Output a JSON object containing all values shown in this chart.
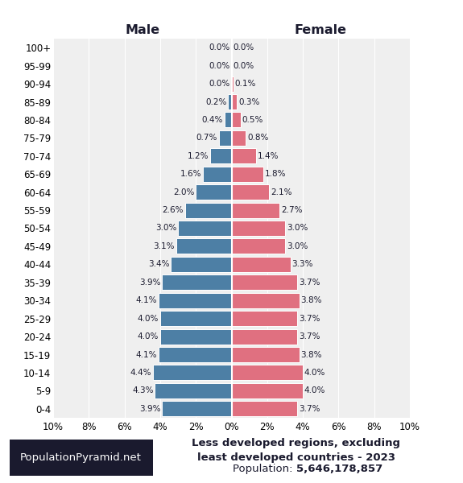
{
  "age_groups": [
    "0-4",
    "5-9",
    "10-14",
    "15-19",
    "20-24",
    "25-29",
    "30-34",
    "35-39",
    "40-44",
    "45-49",
    "50-54",
    "55-59",
    "60-64",
    "65-69",
    "70-74",
    "75-79",
    "80-84",
    "85-89",
    "90-94",
    "95-99",
    "100+"
  ],
  "male": [
    3.9,
    4.3,
    4.4,
    4.1,
    4.0,
    4.0,
    4.1,
    3.9,
    3.4,
    3.1,
    3.0,
    2.6,
    2.0,
    1.6,
    1.2,
    0.7,
    0.4,
    0.2,
    0.0,
    0.0,
    0.0
  ],
  "female": [
    3.7,
    4.0,
    4.0,
    3.8,
    3.7,
    3.7,
    3.8,
    3.7,
    3.3,
    3.0,
    3.0,
    2.7,
    2.1,
    1.8,
    1.4,
    0.8,
    0.5,
    0.3,
    0.1,
    0.0,
    0.0
  ],
  "male_color": "#4d7fa5",
  "female_color": "#e07080",
  "bar_edge_color": "#ffffff",
  "background_color": "#ffffff",
  "plot_background": "#efefef",
  "title_line1": "Less developed regions, excluding",
  "title_line2": "least developed countries - 2023",
  "title_line3": "Population: ",
  "population": "5,646,178,857",
  "header_left": "Male",
  "header_right": "Female",
  "watermark": "PopulationPyramid.net",
  "xlim": 10,
  "title_color": "#1a1a2e",
  "watermark_bg": "#1a1a2e",
  "watermark_text_color": "#ffffff",
  "bar_height": 0.85,
  "label_fontsize": 7.5,
  "tick_fontsize": 8.5,
  "header_fontsize": 11.5,
  "caption_fontsize": 9.5,
  "pop_fontsize": 9.5
}
